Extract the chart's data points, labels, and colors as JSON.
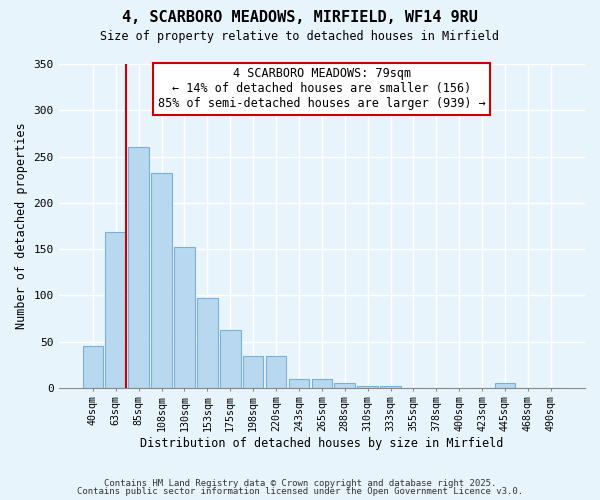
{
  "title": "4, SCARBORO MEADOWS, MIRFIELD, WF14 9RU",
  "subtitle": "Size of property relative to detached houses in Mirfield",
  "xlabel": "Distribution of detached houses by size in Mirfield",
  "ylabel": "Number of detached properties",
  "bar_labels": [
    "40sqm",
    "63sqm",
    "85sqm",
    "108sqm",
    "130sqm",
    "153sqm",
    "175sqm",
    "198sqm",
    "220sqm",
    "243sqm",
    "265sqm",
    "288sqm",
    "310sqm",
    "333sqm",
    "355sqm",
    "378sqm",
    "400sqm",
    "423sqm",
    "445sqm",
    "468sqm",
    "490sqm"
  ],
  "bar_heights": [
    45,
    168,
    260,
    232,
    152,
    97,
    62,
    34,
    34,
    10,
    10,
    5,
    2,
    2,
    0,
    0,
    0,
    0,
    5,
    0,
    0
  ],
  "bar_color": "#b8d8f0",
  "bar_edge_color": "#7ab0d8",
  "ylim": [
    0,
    350
  ],
  "yticks": [
    0,
    50,
    100,
    150,
    200,
    250,
    300,
    350
  ],
  "vline_color": "#cc0000",
  "annotation_title": "4 SCARBORO MEADOWS: 79sqm",
  "annotation_line1": "← 14% of detached houses are smaller (156)",
  "annotation_line2": "85% of semi-detached houses are larger (939) →",
  "annotation_box_color": "#ffffff",
  "annotation_box_edge": "#cc0000",
  "bg_color": "#e8f4fc",
  "grid_color": "#ffffff",
  "footer1": "Contains HM Land Registry data © Crown copyright and database right 2025.",
  "footer2": "Contains public sector information licensed under the Open Government Licence v3.0."
}
